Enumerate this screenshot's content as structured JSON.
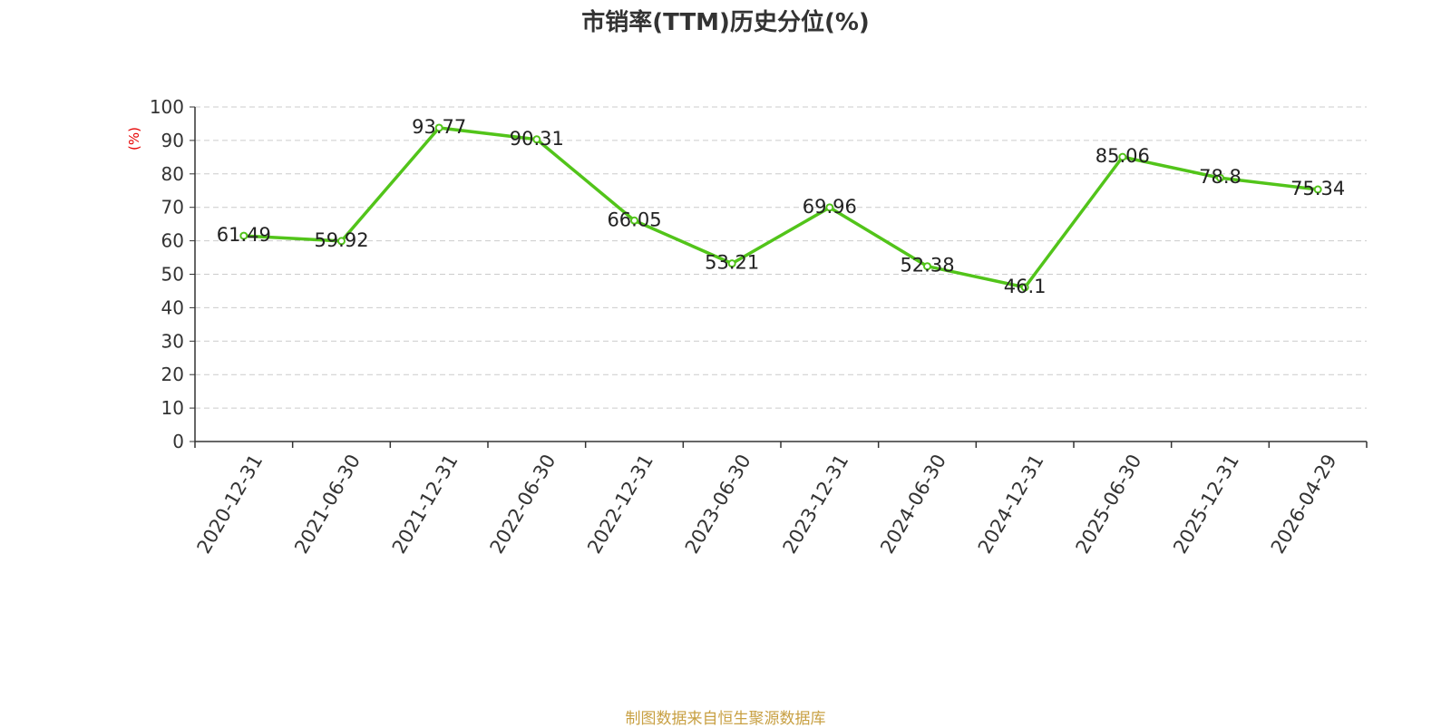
{
  "chart_data": {
    "type": "line",
    "title": "市销率(TTM)历史分位(%)",
    "ylabel": "(%)",
    "xlabel": "",
    "ylim": [
      0,
      100
    ],
    "yticks": [
      0,
      10,
      20,
      30,
      40,
      50,
      60,
      70,
      80,
      90,
      100
    ],
    "categories": [
      "2020-12-31",
      "2021-06-30",
      "2021-12-31",
      "2022-06-30",
      "2022-12-31",
      "2023-06-30",
      "2023-12-31",
      "2024-06-30",
      "2024-12-31",
      "2025-06-30",
      "2025-12-31",
      "2026-04-29"
    ],
    "values": [
      61.49,
      59.92,
      93.77,
      90.31,
      66.05,
      53.21,
      69.96,
      52.38,
      46.1,
      85.06,
      78.8,
      75.34
    ],
    "grid": true,
    "legend": "none",
    "colors": {
      "line": "#52c41a",
      "ylabel": "#e60000",
      "grid": "#cccccc",
      "axis": "#333333"
    }
  },
  "footer": {
    "source": "制图数据来自恒生聚源数据库"
  }
}
